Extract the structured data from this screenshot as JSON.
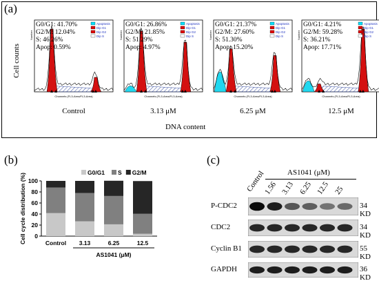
{
  "panel_a": {
    "letter": "(a)",
    "ylabel": "Cell counts",
    "xlabel": "DNA content",
    "legend_items": [
      "Apoptosis",
      "Dip G1",
      "Dip G2",
      "Dip S"
    ],
    "hist_axis_x": "Channels (FL3-Area/FL3-Area)",
    "hist_axis_y": "Number",
    "panels": [
      {
        "condition": "Control",
        "lines": [
          "G0/G1: 41.70%",
          "G2/M: 12.04%",
          "S: 46.26%",
          "Apop: 0.59%"
        ],
        "g1": 0.95,
        "g2": 0.22,
        "sub": 0.0
      },
      {
        "condition": "3.13 μM",
        "lines": [
          "G0/G1: 26.86%",
          "G2/M: 21.85%",
          "S: 51.29%",
          "Apop: 4.97%"
        ],
        "g1": 0.92,
        "g2": 0.75,
        "sub": 0.12
      },
      {
        "condition": "6.25 μM",
        "lines": [
          "G0/G1: 21.37%",
          "G2/M: 27.60%",
          "S: 51.30%",
          "Apop: 15.20%"
        ],
        "g1": 0.65,
        "g2": 0.55,
        "sub": 0.4
      },
      {
        "condition": "12.5 μM",
        "lines": [
          "G0/G1: 4.21%",
          "G2/M: 59.28%",
          "S: 36.21%",
          "Apop: 17.71%"
        ],
        "g1": 0.12,
        "g2": 0.95,
        "sub": 0.22
      }
    ]
  },
  "chart_data": {
    "type": "bar",
    "stacked": true,
    "title": "",
    "xlabel": "AS1041 (μM)",
    "ylabel": "Cell cycle distribution (%)",
    "ylim": [
      0,
      100
    ],
    "yticks": [
      0,
      20,
      40,
      60,
      80,
      100
    ],
    "categories": [
      "Control",
      "3.13",
      "6.25",
      "12.5"
    ],
    "legend_position": "top",
    "series": [
      {
        "name": "G0/G1",
        "color": "#c8c8c8",
        "values": [
          41.7,
          26.86,
          21.37,
          4.21
        ]
      },
      {
        "name": "S",
        "color": "#808080",
        "values": [
          46.26,
          51.29,
          51.3,
          36.21
        ]
      },
      {
        "name": "G2/M",
        "color": "#262626",
        "values": [
          12.04,
          21.85,
          27.6,
          59.28
        ]
      }
    ]
  },
  "panel_b": {
    "letter": "(b)"
  },
  "panel_c": {
    "letter": "(c)",
    "treatment": "AS1041 (μM)",
    "lanes": [
      "Control",
      "1.56",
      "3.13",
      "6.25",
      "12.5",
      "25"
    ],
    "blots": [
      {
        "protein": "P-CDC2",
        "kd": "34 KD",
        "intensity": [
          1.0,
          0.9,
          0.6,
          0.55,
          0.45,
          0.5
        ]
      },
      {
        "protein": "CDC2",
        "kd": "34 KD",
        "intensity": [
          0.85,
          0.85,
          0.85,
          0.85,
          0.85,
          0.85
        ]
      },
      {
        "protein": "Cyclin B1",
        "kd": "55 KD",
        "intensity": [
          0.85,
          0.85,
          0.85,
          0.85,
          0.85,
          0.85
        ]
      },
      {
        "protein": "GAPDH",
        "kd": "36 KD",
        "intensity": [
          0.9,
          0.9,
          0.9,
          0.9,
          0.9,
          0.9
        ]
      }
    ]
  }
}
